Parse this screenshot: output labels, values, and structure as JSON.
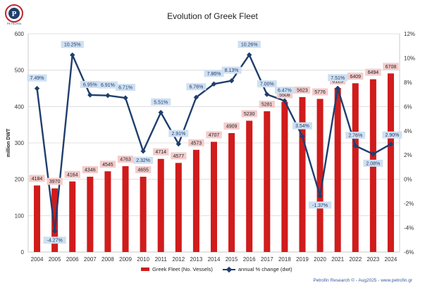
{
  "logo": {
    "letter": "P",
    "ring_text": "PETROFIN"
  },
  "chart_data": {
    "type": "bar+line",
    "title": "Evolution of Greek Fleet",
    "ylabel": "million DWT",
    "ylim": [
      0,
      600
    ],
    "yticks": [
      "0",
      "100",
      "200",
      "300",
      "400",
      "500",
      "600"
    ],
    "y2lim": [
      -6,
      12
    ],
    "y2ticks": [
      "-6%",
      "-4%",
      "-2%",
      "0%",
      "2%",
      "4%",
      "6%",
      "8%",
      "10%",
      "12%"
    ],
    "categories": [
      "2004",
      "2005",
      "2006",
      "2007",
      "2008",
      "2009",
      "2010",
      "2011",
      "2012",
      "2013",
      "2014",
      "2015",
      "2016",
      "2017",
      "2018",
      "2019",
      "2020",
      "2021",
      "2022",
      "2023",
      "2024"
    ],
    "series": [
      {
        "name": "Greek Fleet (No. Vessels)",
        "axis": "left",
        "kind": "bar",
        "dwt_values": [
          183,
          175,
          194,
          207,
          222,
          236,
          207,
          256,
          245,
          281,
          303,
          327,
          361,
          387,
          413,
          426,
          421,
          451,
          464,
          475,
          491
        ],
        "labels": [
          "4184",
          "3970",
          "4164",
          "4346",
          "4545",
          "4763",
          "4655",
          "4714",
          "4577",
          "4573",
          "4707",
          "4909",
          "5230",
          "5281",
          "5508",
          "5623",
          "5776",
          "6123",
          "6409",
          "6494",
          "6708"
        ]
      },
      {
        "name": "annual % change (dwt)",
        "axis": "right",
        "kind": "line",
        "values": [
          7.49,
          -4.27,
          10.25,
          6.95,
          6.91,
          6.71,
          2.32,
          5.51,
          2.91,
          6.76,
          7.86,
          8.13,
          10.26,
          7.0,
          6.47,
          3.54,
          -1.37,
          7.51,
          2.76,
          2.08,
          2.9
        ],
        "labels": [
          "7.49%",
          "-4.27%",
          "10.25%",
          "6.95%",
          "6.91%",
          "6.71%",
          "2.32%",
          "5.51%",
          "2.91%",
          "6.76%",
          "7.86%",
          "8.13%",
          "10.26%",
          "7.00%",
          "6.47%",
          "3.54%",
          "-1.37%",
          "7.51%",
          "2.76%",
          "2.08%",
          "2.90%"
        ]
      }
    ],
    "legend_position": "bottom",
    "source": "Petrofin Research © - Aug2025 - www.petrofin.gr"
  }
}
